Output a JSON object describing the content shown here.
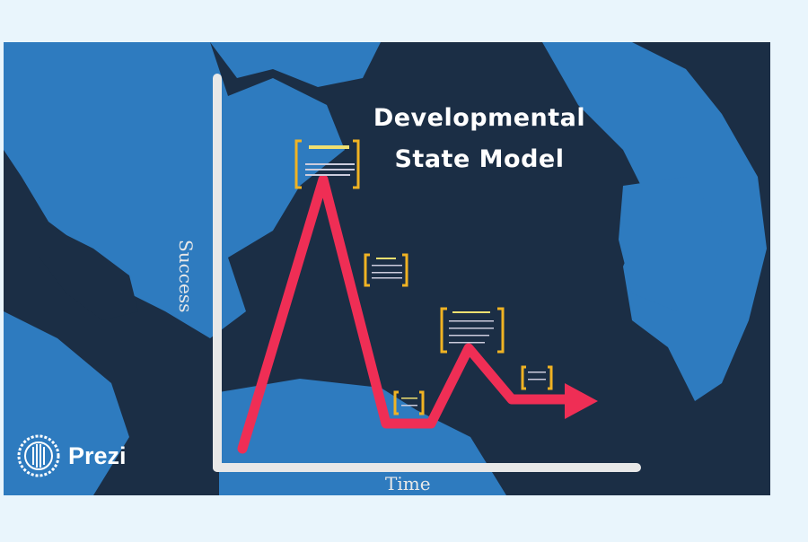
{
  "presentation": {
    "title_line1": "Developmental",
    "title_line2": "State Model",
    "y_axis_label": "Success",
    "x_axis_label": "Time",
    "brand": "Prezi"
  },
  "colors": {
    "background": "#1b2e45",
    "land": "#2e7bbf",
    "line": "#ef2e55",
    "bracket": "#f0b323",
    "axis": "#e8e8e8",
    "page": "#e9f5fc"
  }
}
